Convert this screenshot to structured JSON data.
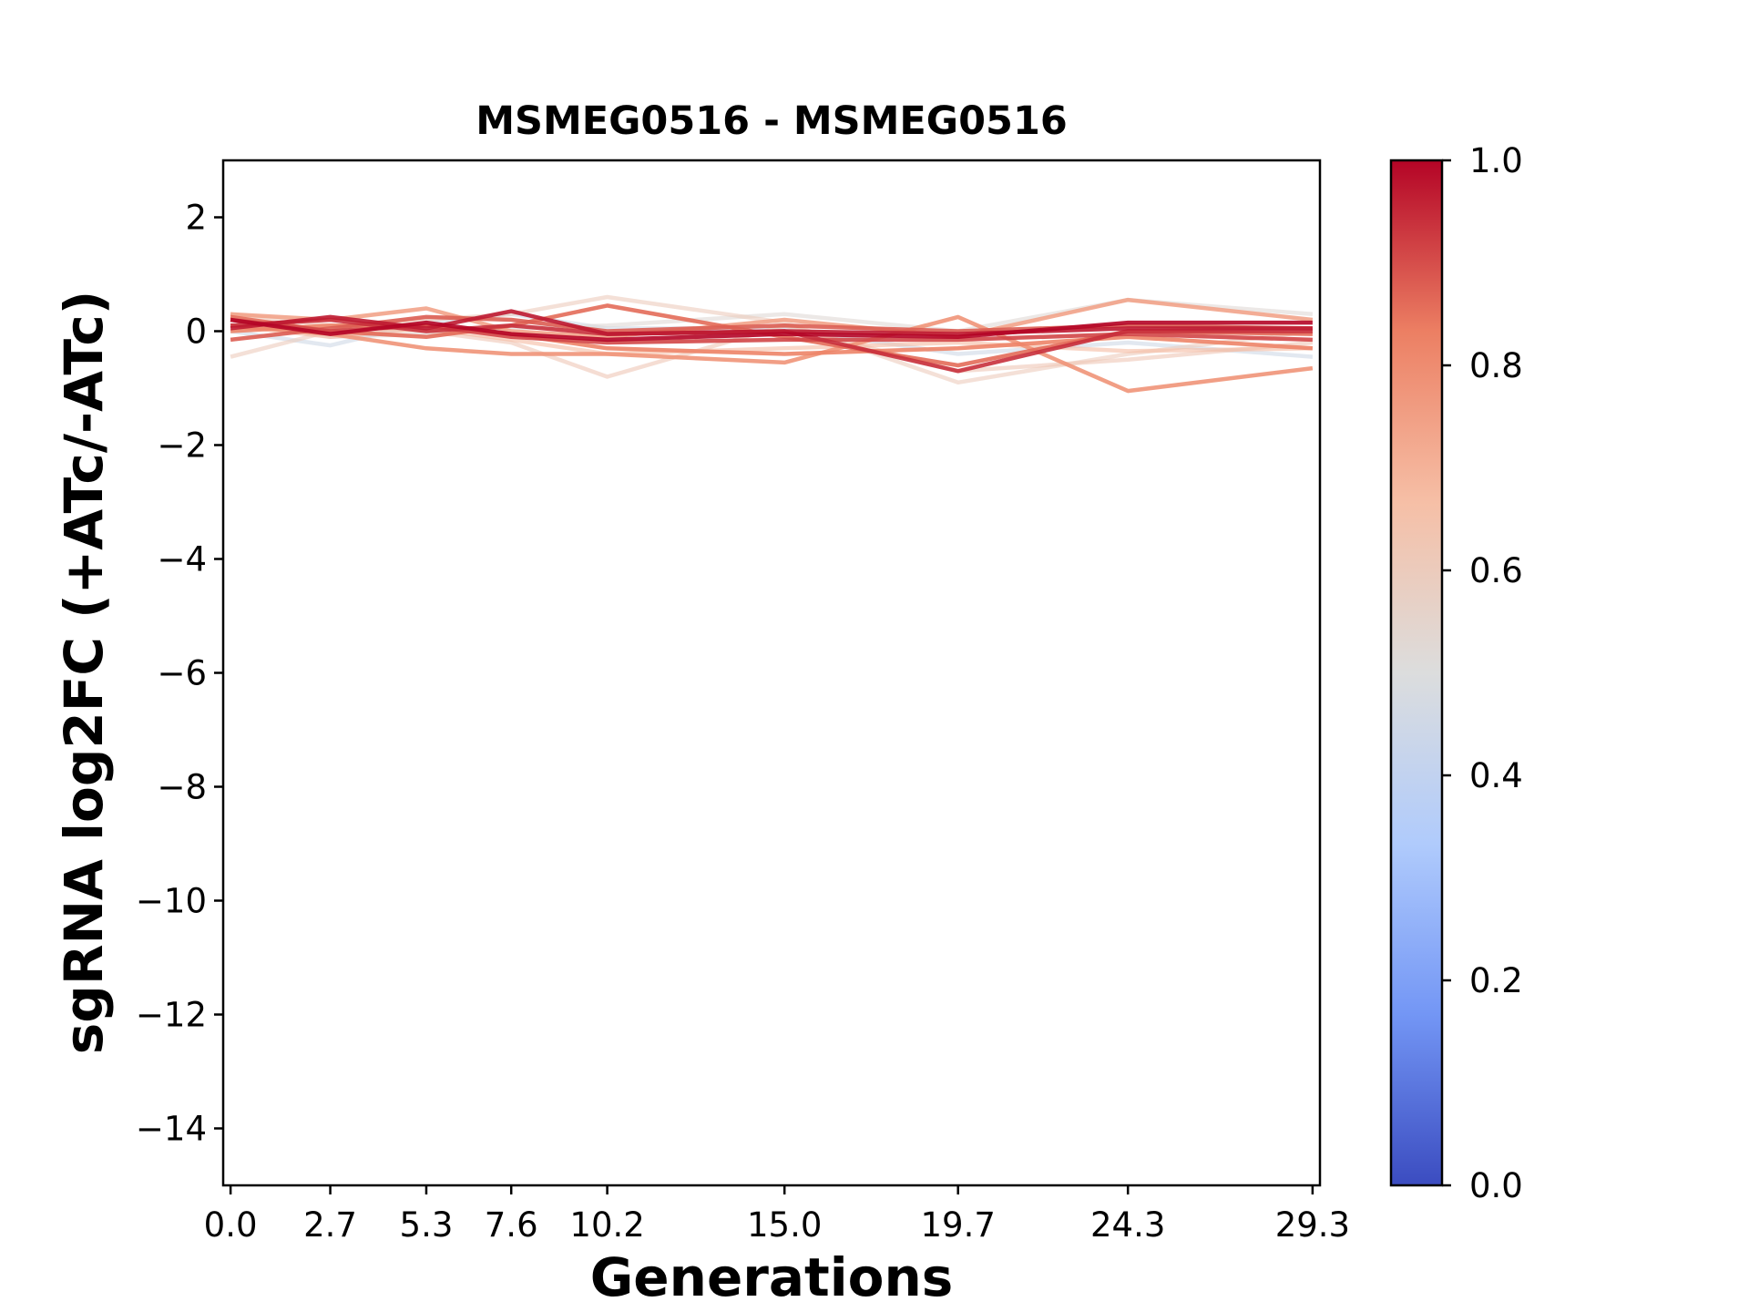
{
  "chart_data": {
    "type": "line",
    "title": "MSMEG0516 - MSMEG0516",
    "xlabel": "Generations",
    "ylabel": "sgRNA log2FC (+ATc/-ATc)",
    "x": [
      0.0,
      2.7,
      5.3,
      7.6,
      10.2,
      15.0,
      19.7,
      24.3,
      29.3
    ],
    "x_tick_labels": [
      "0.0",
      "2.7",
      "5.3",
      "7.6",
      "10.2",
      "15.0",
      "19.7",
      "24.3",
      "29.3"
    ],
    "xlim": [
      -0.2,
      29.5
    ],
    "ylim": [
      -15,
      3
    ],
    "y_ticks": [
      2,
      0,
      -2,
      -4,
      -6,
      -8,
      -10,
      -12,
      -14
    ],
    "y_tick_labels": [
      "2",
      "0",
      "−2",
      "−4",
      "−6",
      "−8",
      "−10",
      "−12",
      "−14"
    ],
    "grid": false,
    "colorbar": {
      "colormap": "coolwarm",
      "range": [
        0.0,
        1.0
      ],
      "ticks": [
        0.0,
        0.2,
        0.4,
        0.6,
        0.8,
        1.0
      ],
      "tick_labels": [
        "0.0",
        "0.2",
        "0.4",
        "0.6",
        "0.8",
        "1.0"
      ],
      "stops": [
        "#3b4cc0",
        "#7396f5",
        "#b0cbfc",
        "#dcdddd",
        "#f6bfa6",
        "#ec7f63",
        "#b40426"
      ]
    },
    "series": [
      {
        "color_value": 0.45,
        "values": [
          0.0,
          -0.25,
          0.15,
          0.3,
          0.05,
          0.05,
          -0.4,
          -0.2,
          -0.45
        ]
      },
      {
        "color_value": 0.52,
        "values": [
          0.2,
          -0.1,
          -0.05,
          0.05,
          0.1,
          0.3,
          0.0,
          0.55,
          0.3
        ]
      },
      {
        "color_value": 0.6,
        "values": [
          -0.45,
          0.0,
          0.2,
          0.3,
          0.6,
          0.15,
          -0.9,
          -0.4,
          0.0
        ]
      },
      {
        "color_value": 0.62,
        "values": [
          0.3,
          0.1,
          0.0,
          -0.2,
          -0.8,
          0.1,
          -0.7,
          -0.5,
          -0.2
        ]
      },
      {
        "color_value": 0.68,
        "values": [
          0.1,
          -0.1,
          0.05,
          -0.15,
          -0.4,
          -0.3,
          -0.2,
          -0.35,
          -0.3
        ]
      },
      {
        "color_value": 0.74,
        "values": [
          0.3,
          0.2,
          0.4,
          0.0,
          -0.1,
          0.2,
          -0.1,
          0.55,
          0.2
        ]
      },
      {
        "color_value": 0.78,
        "values": [
          0.1,
          -0.05,
          -0.3,
          -0.4,
          -0.4,
          -0.55,
          0.25,
          -1.05,
          -0.65
        ]
      },
      {
        "color_value": 0.82,
        "values": [
          0.0,
          0.1,
          0.1,
          -0.05,
          -0.3,
          -0.4,
          -0.3,
          -0.1,
          -0.3
        ]
      },
      {
        "color_value": 0.86,
        "values": [
          0.25,
          0.0,
          -0.1,
          0.1,
          0.45,
          -0.1,
          -0.6,
          0.0,
          -0.05
        ]
      },
      {
        "color_value": 0.88,
        "values": [
          -0.15,
          0.05,
          0.25,
          0.2,
          0.0,
          0.1,
          0.0,
          0.1,
          0.05
        ]
      },
      {
        "color_value": 0.91,
        "values": [
          0.2,
          0.0,
          0.1,
          -0.1,
          -0.2,
          -0.15,
          -0.15,
          -0.05,
          -0.15
        ]
      },
      {
        "color_value": 0.94,
        "values": [
          0.1,
          0.2,
          0.0,
          0.1,
          -0.05,
          0.0,
          -0.7,
          0.0,
          0.0
        ]
      },
      {
        "color_value": 0.97,
        "values": [
          0.05,
          0.25,
          0.05,
          0.35,
          -0.05,
          0.0,
          -0.05,
          0.05,
          0.05
        ]
      },
      {
        "color_value": 1.0,
        "values": [
          0.2,
          -0.05,
          0.15,
          -0.05,
          -0.15,
          -0.05,
          -0.1,
          0.15,
          0.15
        ]
      }
    ]
  }
}
